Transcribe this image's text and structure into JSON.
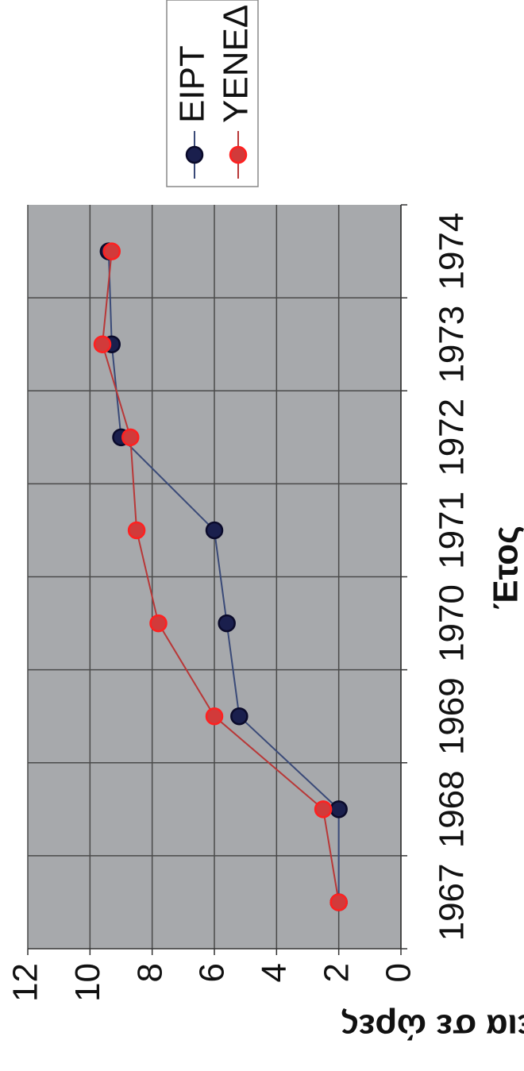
{
  "chart_data": {
    "type": "line",
    "x_label": "Έτος",
    "y_label": "Διάρκεια σε ώρες",
    "categories": [
      "1967",
      "1968",
      "1969",
      "1970",
      "1971",
      "1972",
      "1973",
      "1974"
    ],
    "series": [
      {
        "name": "ΕΙΡΤ",
        "color": "#1a1f4d",
        "line_color": "#3a4a78",
        "values": [
          2,
          2,
          5.2,
          5.6,
          6,
          9,
          9.3,
          9.4
        ]
      },
      {
        "name": "ΥΕΝΕΔ",
        "color": "#d23a3a",
        "line_color": "#b83838",
        "values": [
          2,
          2.5,
          6,
          7.8,
          8.5,
          8.7,
          9.6,
          9.3
        ]
      }
    ],
    "ylim": [
      0,
      12
    ],
    "yticks": [
      0,
      2,
      4,
      6,
      8,
      10,
      12
    ],
    "grid": true
  }
}
